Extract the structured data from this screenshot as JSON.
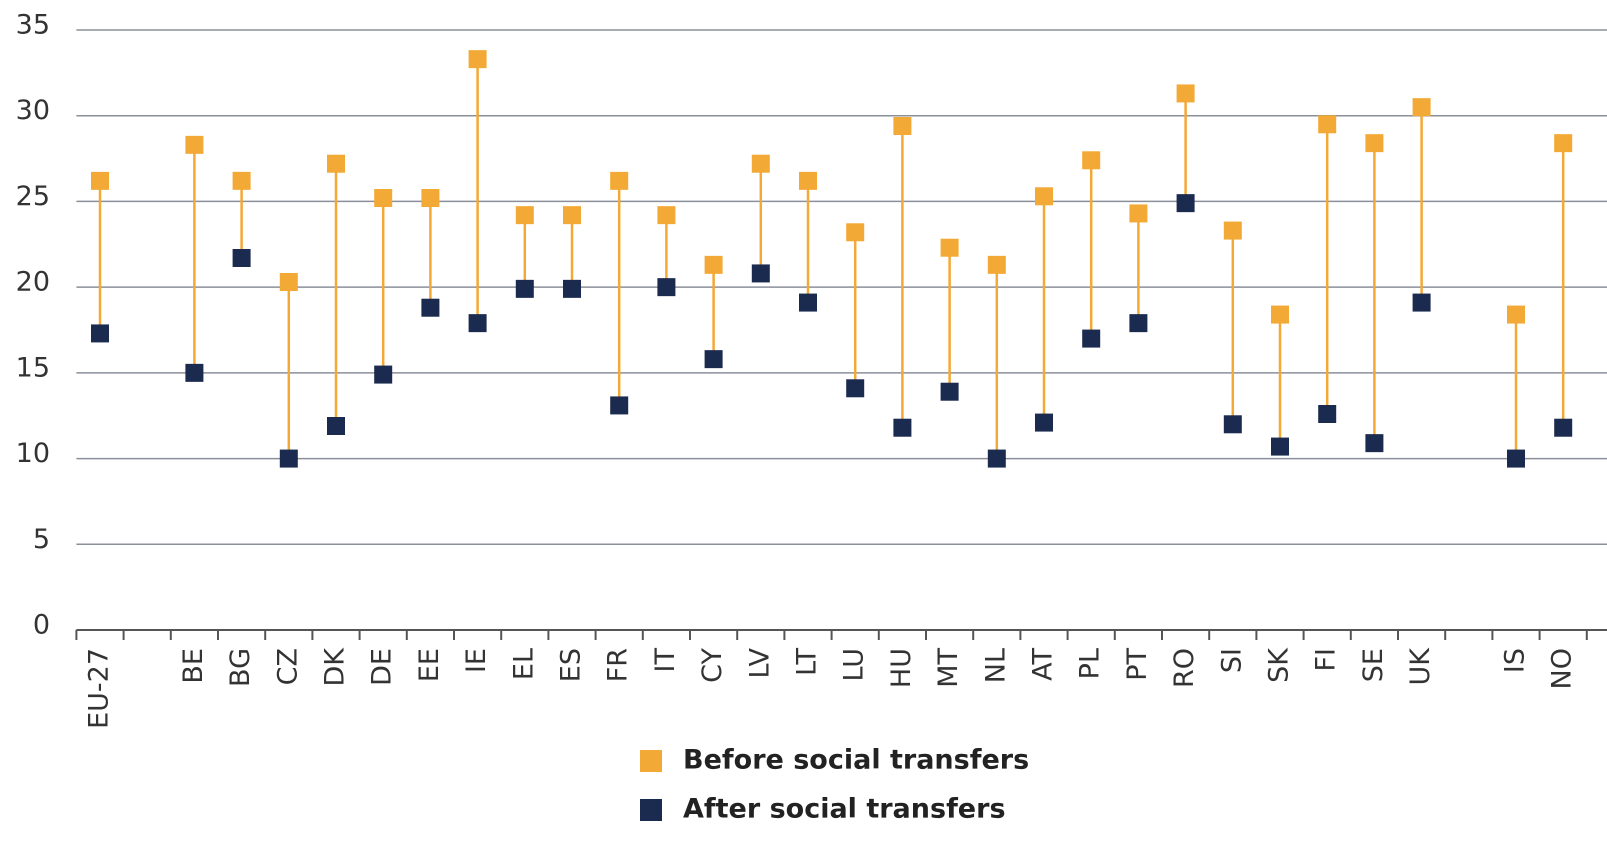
{
  "chart_data": {
    "type": "dot",
    "categories": [
      "EU-27",
      null,
      "BE",
      "BG",
      "CZ",
      "DK",
      "DE",
      "EE",
      "IE",
      "EL",
      "ES",
      "FR",
      "IT",
      "CY",
      "LV",
      "LT",
      "LU",
      "HU",
      "MT",
      "NL",
      "AT",
      "PL",
      "PT",
      "RO",
      "SI",
      "SK",
      "FI",
      "SE",
      "UK",
      null,
      "IS",
      "NO"
    ],
    "series": [
      {
        "name": "Before social transfers",
        "color": "#f3a935",
        "values": [
          26.2,
          null,
          28.3,
          26.2,
          20.3,
          27.2,
          25.2,
          25.2,
          33.3,
          24.2,
          24.2,
          26.2,
          24.2,
          21.3,
          27.2,
          26.2,
          23.2,
          29.4,
          22.3,
          21.3,
          25.3,
          27.4,
          24.3,
          31.3,
          23.3,
          18.4,
          29.5,
          28.4,
          30.5,
          null,
          18.4,
          28.4
        ]
      },
      {
        "name": "After social transfers",
        "color": "#1b2a4f",
        "values": [
          17.3,
          null,
          15.0,
          21.7,
          10.0,
          11.9,
          14.9,
          18.8,
          17.9,
          19.9,
          19.9,
          13.1,
          20.0,
          15.8,
          20.8,
          19.1,
          14.1,
          11.8,
          13.9,
          10.0,
          12.1,
          17.0,
          17.9,
          24.9,
          12.0,
          10.7,
          12.6,
          10.9,
          19.1,
          null,
          10.0,
          11.8
        ]
      }
    ],
    "ylim": [
      0,
      35
    ],
    "yticks": [
      0,
      5,
      10,
      15,
      20,
      25,
      30,
      35
    ],
    "grid": true
  }
}
